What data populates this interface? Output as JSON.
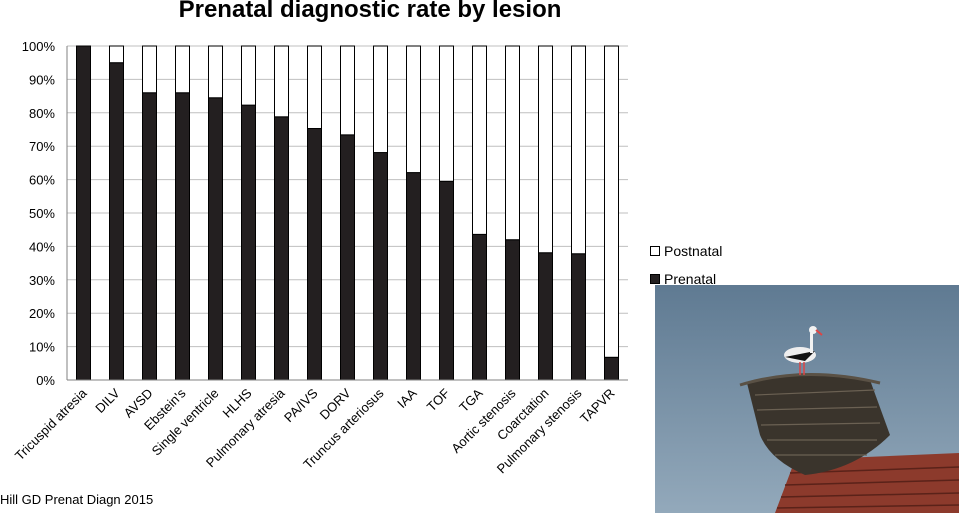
{
  "chart_data": {
    "type": "bar",
    "stacked": true,
    "title": "Prenatal diagnostic rate by lesion",
    "categories": [
      "Tricuspid atresia",
      "DILV",
      "AVSD",
      "Ebstein's",
      "Single ventricle",
      "HLHS",
      "Pulmonary atresia",
      "PA/IVS",
      "DORV",
      "Truncus arteriosus",
      "IAA",
      "TOF",
      "TGA",
      "Aortic stenosis",
      "Coarctation",
      "Pulmonary stenosis",
      "TAPVR"
    ],
    "series": [
      {
        "name": "Prenatal",
        "color": "#231f20",
        "values": [
          100,
          95,
          86,
          86,
          84.5,
          82.3,
          78.8,
          75.3,
          73.4,
          68.1,
          62.1,
          59.5,
          43.6,
          42,
          38.1,
          37.8,
          6.8
        ]
      },
      {
        "name": "Postnatal",
        "color": "#ffffff",
        "values": [
          0,
          5,
          14,
          14,
          15.5,
          17.7,
          21.2,
          24.7,
          26.6,
          31.9,
          37.9,
          40.5,
          56.4,
          58,
          61.9,
          62.2,
          93.2
        ]
      }
    ],
    "y_ticks": [
      "0%",
      "10%",
      "20%",
      "30%",
      "40%",
      "50%",
      "60%",
      "70%",
      "80%",
      "90%",
      "100%"
    ],
    "ylim": [
      0,
      100
    ],
    "grid": true,
    "legend_position": "right"
  },
  "legend": {
    "postnatal_label": "Postnatal",
    "prenatal_label": "Prenatal"
  },
  "citation": "Hill GD Prenat Diagn 2015"
}
